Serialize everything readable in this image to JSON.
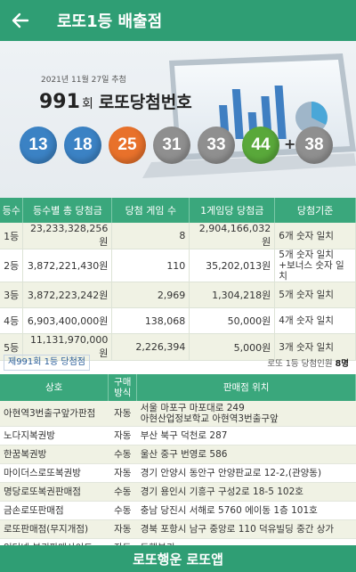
{
  "app_bar": {
    "title": "로또1등 배출점",
    "back_icon": "arrow-left-icon"
  },
  "draw": {
    "date": "2021년 11월 27일 추첨",
    "round": "991",
    "round_suffix": "회",
    "title": "로또당첨번호",
    "numbers": [
      {
        "value": "13",
        "color": "#3b82c4"
      },
      {
        "value": "18",
        "color": "#3b82c4"
      },
      {
        "value": "25",
        "color": "#e8712b"
      },
      {
        "value": "31",
        "color": "#8f8f8f"
      },
      {
        "value": "33",
        "color": "#8f8f8f"
      },
      {
        "value": "44",
        "color": "#59a83a"
      }
    ],
    "plus": "+",
    "bonus": {
      "value": "38",
      "color": "#8f8f8f"
    }
  },
  "prize_table": {
    "headers": [
      "등수",
      "등수별 총 당첨금",
      "당첨 게임 수",
      "1게임당 당첨금",
      "당첨기준"
    ],
    "rows": [
      {
        "rank": "1등",
        "total": "23,233,328,256원",
        "games": "8",
        "per_game": "2,904,166,032원",
        "criteria": "6개 숫자 일치"
      },
      {
        "rank": "2등",
        "total": "3,872,221,430원",
        "games": "110",
        "per_game": "35,202,013원",
        "criteria": "5개 숫자 일치\n+보너스 숫자 일치"
      },
      {
        "rank": "3등",
        "total": "3,872,223,242원",
        "games": "2,969",
        "per_game": "1,304,218원",
        "criteria": "5개 숫자 일치"
      },
      {
        "rank": "4등",
        "total": "6,903,400,000원",
        "games": "138,068",
        "per_game": "50,000원",
        "criteria": "4개 숫자 일치"
      },
      {
        "rank": "5등",
        "total": "11,131,970,000원",
        "games": "2,226,394",
        "per_game": "5,000원",
        "criteria": "3개 숫자 일치"
      }
    ]
  },
  "summary": {
    "tag": "제991회 1등 당첨점",
    "winners_label": "로또 1등 당첨인원",
    "winners_count": "8명"
  },
  "stores_table": {
    "headers": [
      "상호",
      "구매\n방식",
      "판매점 위치"
    ],
    "rows": [
      {
        "name": "아현역3번출구앞가판점",
        "method": "자동",
        "location": "서울 마포구 마포대로 249\n아현산업정보학교 아현역3번출구앞"
      },
      {
        "name": "노다지복권방",
        "method": "자동",
        "location": "부산 북구 덕천로 287"
      },
      {
        "name": "한꿈복권방",
        "method": "수동",
        "location": "울산 중구 번영로 586"
      },
      {
        "name": "마이더스로또복권방",
        "method": "자동",
        "location": "경기 안양시 동안구 안양판교로 12-2,(관양동)"
      },
      {
        "name": "명당로또복권판매점",
        "method": "수동",
        "location": "경기 용인시 기흥구 구성2로 18-5 102호"
      },
      {
        "name": "금손로또판매점",
        "method": "수동",
        "location": "충남 당진시 서해로 5760 에이동 1층 101호"
      },
      {
        "name": "로또판매점(무지개점)",
        "method": "자동",
        "location": "경북 포항시 남구 중앙로 110 덕유빌딩 중간 상가"
      },
      {
        "name": "인터넷 복권판매사이트",
        "method": "자동",
        "location": "동행복권"
      }
    ]
  },
  "bottom_bar": {
    "label": "로또행운 로또앱"
  }
}
